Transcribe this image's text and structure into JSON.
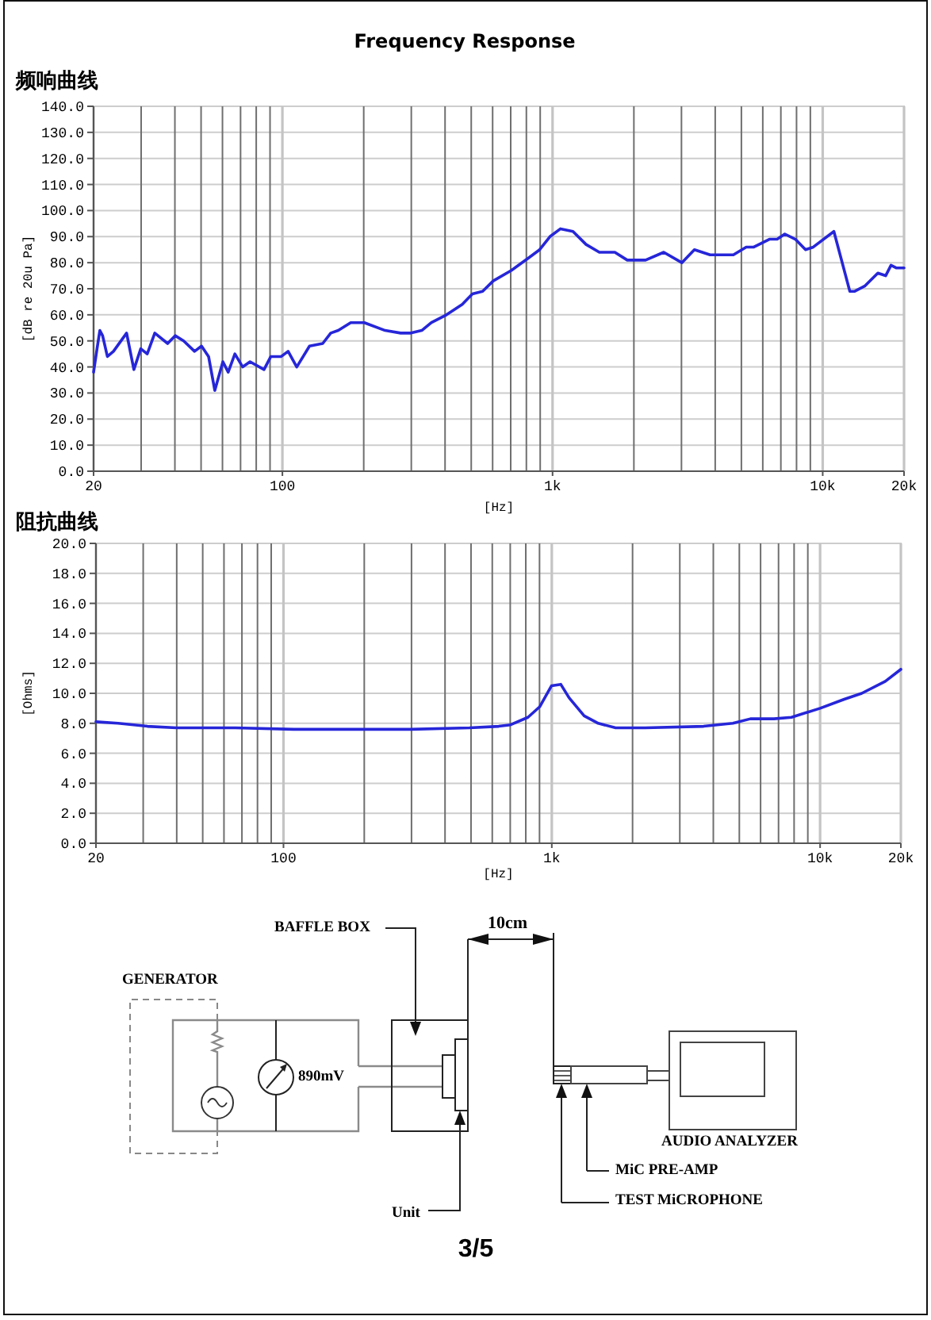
{
  "chart_data": [
    {
      "type": "line",
      "title": "Frequency Response",
      "subtitle": "频响曲线",
      "xlabel": "[Hz]",
      "ylabel": "[dB re 20u Pa]",
      "log": "x",
      "grid": true,
      "xlim": [
        20,
        20000
      ],
      "ylim": [
        0,
        140
      ],
      "xticks": [
        {
          "value": 20,
          "label": "20"
        },
        {
          "value": 30,
          "label": null
        },
        {
          "value": 40,
          "label": null
        },
        {
          "value": 50,
          "label": null
        },
        {
          "value": 60,
          "label": null
        },
        {
          "value": 70,
          "label": null
        },
        {
          "value": 80,
          "label": null
        },
        {
          "value": 90,
          "label": null
        },
        {
          "value": 100,
          "label": "100"
        },
        {
          "value": 200,
          "label": null
        },
        {
          "value": 300,
          "label": null
        },
        {
          "value": 400,
          "label": null
        },
        {
          "value": 500,
          "label": null
        },
        {
          "value": 600,
          "label": null
        },
        {
          "value": 700,
          "label": null
        },
        {
          "value": 800,
          "label": null
        },
        {
          "value": 900,
          "label": null
        },
        {
          "value": 1000,
          "label": "1k"
        },
        {
          "value": 2000,
          "label": null
        },
        {
          "value": 3000,
          "label": null
        },
        {
          "value": 4000,
          "label": null
        },
        {
          "value": 5000,
          "label": null
        },
        {
          "value": 6000,
          "label": null
        },
        {
          "value": 7000,
          "label": null
        },
        {
          "value": 8000,
          "label": null
        },
        {
          "value": 9000,
          "label": null
        },
        {
          "value": 10000,
          "label": "10k"
        },
        {
          "value": 20000,
          "label": "20k"
        }
      ],
      "yticks": [
        {
          "value": 0,
          "label": "0.0"
        },
        {
          "value": 10,
          "label": "10.0"
        },
        {
          "value": 20,
          "label": "20.0"
        },
        {
          "value": 30,
          "label": "30.0"
        },
        {
          "value": 40,
          "label": "40.0"
        },
        {
          "value": 50,
          "label": "50.0"
        },
        {
          "value": 60,
          "label": "60.0"
        },
        {
          "value": 70,
          "label": "70.0"
        },
        {
          "value": 80,
          "label": "80.0"
        },
        {
          "value": 90,
          "label": "90.0"
        },
        {
          "value": 100,
          "label": "100.0"
        },
        {
          "value": 110,
          "label": "110.0"
        },
        {
          "value": 120,
          "label": "120.0"
        },
        {
          "value": 130,
          "label": "130.0"
        },
        {
          "value": 140,
          "label": "140.0"
        }
      ],
      "x": [
        20,
        20.6,
        21.1,
        21.6,
        22.5,
        23.7,
        26.5,
        28.2,
        29.9,
        31.6,
        33.7,
        37.6,
        40.1,
        43.1,
        47.3,
        50.2,
        53.3,
        56.2,
        60.2,
        63,
        66.7,
        71.3,
        75.9,
        85.5,
        90.6,
        99,
        105,
        113,
        126,
        141,
        151,
        161,
        179,
        201,
        240,
        274,
        299,
        328,
        356,
        405,
        463,
        505,
        551,
        603,
        703,
        820,
        896,
        978,
        1070,
        1190,
        1330,
        1490,
        1700,
        1890,
        2210,
        2580,
        3010,
        3350,
        3830,
        4670,
        5210,
        5560,
        6350,
        6780,
        7240,
        7920,
        8640,
        9230,
        11000,
        12600,
        13100,
        14300,
        16000,
        17100,
        17900,
        18700,
        20000
      ],
      "series": [
        {
          "color": "#2626d9",
          "values": [
            38,
            47,
            54,
            52,
            44,
            46,
            53,
            39,
            47,
            45,
            53,
            49,
            52,
            50,
            46,
            48,
            44,
            31,
            42,
            38,
            45,
            40,
            42,
            39,
            44,
            44,
            46,
            40,
            48,
            49,
            53,
            54,
            57,
            57,
            54,
            53,
            53,
            54,
            57,
            60,
            64,
            68,
            69,
            73,
            77,
            82,
            85,
            90,
            93,
            92,
            87,
            84,
            84,
            81,
            81,
            84,
            80,
            85,
            83,
            83,
            86,
            86,
            89,
            89,
            91,
            89,
            85,
            86,
            92,
            69,
            69,
            71,
            76,
            75,
            79,
            78,
            78
          ]
        }
      ]
    },
    {
      "type": "line",
      "title": "阻抗曲线",
      "xlabel": "[Hz]",
      "ylabel": "[Ohms]",
      "log": "x",
      "grid": true,
      "xlim": [
        20,
        20000
      ],
      "ylim": [
        0,
        20
      ],
      "xticks": [
        {
          "value": 20,
          "label": "20"
        },
        {
          "value": 30,
          "label": null
        },
        {
          "value": 40,
          "label": null
        },
        {
          "value": 50,
          "label": null
        },
        {
          "value": 60,
          "label": null
        },
        {
          "value": 70,
          "label": null
        },
        {
          "value": 80,
          "label": null
        },
        {
          "value": 90,
          "label": null
        },
        {
          "value": 100,
          "label": "100"
        },
        {
          "value": 200,
          "label": null
        },
        {
          "value": 300,
          "label": null
        },
        {
          "value": 400,
          "label": null
        },
        {
          "value": 500,
          "label": null
        },
        {
          "value": 600,
          "label": null
        },
        {
          "value": 700,
          "label": null
        },
        {
          "value": 800,
          "label": null
        },
        {
          "value": 900,
          "label": null
        },
        {
          "value": 1000,
          "label": "1k"
        },
        {
          "value": 2000,
          "label": null
        },
        {
          "value": 3000,
          "label": null
        },
        {
          "value": 4000,
          "label": null
        },
        {
          "value": 5000,
          "label": null
        },
        {
          "value": 6000,
          "label": null
        },
        {
          "value": 7000,
          "label": null
        },
        {
          "value": 8000,
          "label": null
        },
        {
          "value": 9000,
          "label": null
        },
        {
          "value": 10000,
          "label": "10k"
        },
        {
          "value": 20000,
          "label": "20k"
        }
      ],
      "yticks": [
        {
          "value": 0,
          "label": "0.0"
        },
        {
          "value": 2,
          "label": "2.0"
        },
        {
          "value": 4,
          "label": "4.0"
        },
        {
          "value": 6,
          "label": "6.0"
        },
        {
          "value": 8,
          "label": "8.0"
        },
        {
          "value": 10,
          "label": "10.0"
        },
        {
          "value": 12,
          "label": "12.0"
        },
        {
          "value": 14,
          "label": "14.0"
        },
        {
          "value": 16,
          "label": "16.0"
        },
        {
          "value": 18,
          "label": "18.0"
        },
        {
          "value": 20,
          "label": "20.0"
        }
      ],
      "x": [
        20,
        24.2,
        31.1,
        40,
        66.1,
        109,
        298,
        493,
        634,
        702,
        815,
        901,
        997,
        1080,
        1160,
        1320,
        1490,
        1730,
        2230,
        3680,
        4730,
        5500,
        6730,
        7820,
        10000,
        12300,
        14300,
        17500,
        20000
      ],
      "series": [
        {
          "color": "#2626d9",
          "values": [
            8.1,
            8.0,
            7.8,
            7.7,
            7.7,
            7.6,
            7.6,
            7.7,
            7.8,
            7.9,
            8.4,
            9.1,
            10.5,
            10.6,
            9.7,
            8.5,
            8.0,
            7.7,
            7.7,
            7.8,
            8.0,
            8.3,
            8.3,
            8.4,
            9.0,
            9.6,
            10.0,
            10.8,
            11.6
          ]
        }
      ]
    },
    {
      "type": "other",
      "annotations": [
        "10cm",
        "BAFFLE BOX",
        "GENERATOR",
        "890mV",
        "AUDIO ANALYZER",
        "MiC PRE-AMP",
        "TEST MiCROPHONE",
        "Unit",
        "3/5"
      ]
    }
  ]
}
